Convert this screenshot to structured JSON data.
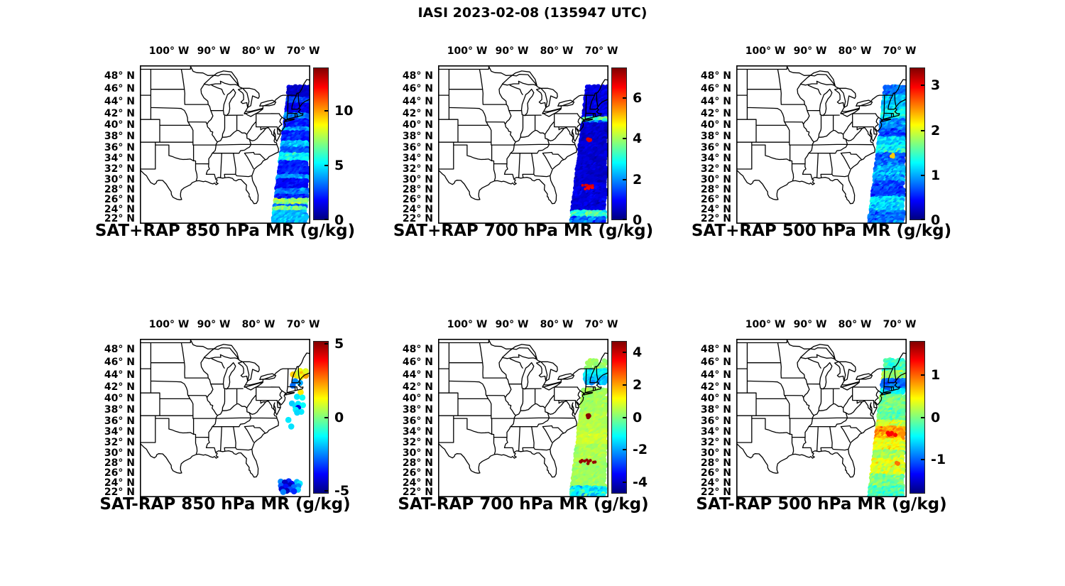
{
  "figure_title": "IASI 2023-02-08 (135947 UTC)",
  "colors": {
    "background": "#ffffff",
    "map_outline": "#000000",
    "jet_colormap": [
      "#000080",
      "#0000ff",
      "#00ffff",
      "#ffff00",
      "#ff0000",
      "#800000"
    ]
  },
  "axes": {
    "lon_tick_labels": [
      "100° W",
      "90° W",
      "80° W",
      "70° W"
    ],
    "lon_tick_values": [
      -100,
      -90,
      -80,
      -70
    ],
    "lat_tick_labels": [
      "48° N",
      "46° N",
      "44° N",
      "42° N",
      "40° N",
      "38° N",
      "36° N",
      "34° N",
      "32° N",
      "30° N",
      "28° N",
      "26° N",
      "24° N",
      "22° N"
    ],
    "lat_tick_values": [
      48,
      46,
      44,
      42,
      40,
      38,
      36,
      34,
      32,
      30,
      28,
      26,
      24,
      22
    ]
  },
  "chart_data": [
    {
      "type": "scatter",
      "title": "SAT+RAP 850 hPa MR (g/kg)",
      "units": "g/kg",
      "projection": "mercator",
      "lon_range": [
        -106.5,
        -68.4
      ],
      "lat_range": [
        20.9,
        49.6
      ],
      "colorbar": {
        "min": 0,
        "max": 14,
        "tick_values": [
          0,
          5,
          10
        ]
      },
      "swath": {
        "mode": "stripes",
        "stripes": [
          [
            46.5,
            44.5,
            1.0,
            0.6,
            0.03
          ],
          [
            44.5,
            43.5,
            2.6,
            1.0,
            0
          ],
          [
            43.5,
            41.8,
            1.5,
            0.7,
            0
          ],
          [
            41.8,
            40.8,
            3.4,
            1.2,
            0
          ],
          [
            40.8,
            39.5,
            2.0,
            0.9,
            0
          ],
          [
            39.5,
            38.8,
            4.0,
            1.2,
            0
          ],
          [
            38.8,
            37.2,
            2.2,
            0.9,
            0
          ],
          [
            37.2,
            36.0,
            4.3,
            1.2,
            0
          ],
          [
            36.0,
            34.8,
            3.0,
            1.0,
            0
          ],
          [
            34.8,
            33.2,
            5.3,
            1.2,
            0
          ],
          [
            33.2,
            30.8,
            2.2,
            0.9,
            0
          ],
          [
            30.8,
            30.0,
            4.0,
            1.0,
            0
          ],
          [
            30.0,
            28.0,
            1.8,
            0.8,
            0
          ],
          [
            28.0,
            26.8,
            3.4,
            1.2,
            0
          ],
          [
            26.8,
            25.8,
            2.2,
            1.0,
            0
          ],
          [
            25.8,
            24.8,
            7.3,
            1.3,
            0
          ],
          [
            24.8,
            24.2,
            3.2,
            1.1,
            0
          ],
          [
            24.2,
            23.4,
            6.8,
            1.4,
            0
          ],
          [
            23.4,
            21.0,
            4.4,
            1.1,
            0.02
          ]
        ],
        "spots": []
      }
    },
    {
      "type": "scatter",
      "title": "SAT+RAP 700 hPa MR (g/kg)",
      "units": "g/kg",
      "projection": "mercator",
      "lon_range": [
        -106.5,
        -68.4
      ],
      "lat_range": [
        20.9,
        49.6
      ],
      "colorbar": {
        "min": 0,
        "max": 7.5,
        "tick_values": [
          0,
          2,
          4,
          6
        ]
      },
      "swath": {
        "mode": "stripes",
        "stripes": [
          [
            46.5,
            41.4,
            0.7,
            0.4,
            0.03
          ],
          [
            41.4,
            40.5,
            3.4,
            0.9,
            0
          ],
          [
            40.5,
            40.1,
            1.8,
            0.7,
            0
          ],
          [
            40.1,
            29.2,
            0.6,
            0.35,
            0.02
          ],
          [
            29.2,
            23.4,
            0.7,
            0.4,
            0.02
          ],
          [
            23.4,
            22.3,
            3.2,
            0.9,
            0
          ],
          [
            22.3,
            21.0,
            1.6,
            1.0,
            0.1
          ]
        ],
        "spots": [
          {
            "lat": 37.35,
            "fx": 0.3,
            "value": 6.8,
            "n": 5,
            "sx": 0.06,
            "r": 2.8
          },
          {
            "lat": 28.6,
            "fx": 0.35,
            "value": 6.8,
            "n": 8,
            "sx": 0.25,
            "r": 2.0
          },
          {
            "lat": 28.15,
            "fx": 0.5,
            "value": 6.6,
            "n": 6,
            "sx": 0.2,
            "r": 2.0
          }
        ]
      }
    },
    {
      "type": "scatter",
      "title": "SAT+RAP 500 hPa MR (g/kg)",
      "units": "g/kg",
      "projection": "mercator",
      "lon_range": [
        -106.5,
        -68.4
      ],
      "lat_range": [
        20.9,
        49.6
      ],
      "colorbar": {
        "min": 0,
        "max": 3.4,
        "tick_values": [
          0,
          1,
          2,
          3
        ]
      },
      "swath": {
        "mode": "stripes",
        "stripes": [
          [
            46.4,
            44.8,
            0.8,
            0.3,
            0.05
          ],
          [
            44.8,
            43.0,
            1.1,
            0.35,
            0.02
          ],
          [
            43.0,
            41.0,
            1.25,
            0.4,
            0.02
          ],
          [
            41.0,
            39.2,
            0.9,
            0.35,
            0.02
          ],
          [
            39.2,
            37.8,
            0.65,
            0.3,
            0.02
          ],
          [
            37.8,
            36.2,
            1.1,
            0.4,
            0.02
          ],
          [
            36.2,
            35.0,
            1.3,
            0.45,
            0.02
          ],
          [
            35.0,
            32.8,
            0.8,
            0.35,
            0.02
          ],
          [
            32.8,
            29.5,
            1.0,
            0.4,
            0.02
          ],
          [
            29.5,
            26.5,
            0.65,
            0.3,
            0.02
          ],
          [
            26.5,
            23.5,
            1.15,
            0.4,
            0.02
          ],
          [
            23.5,
            21.0,
            0.8,
            0.35,
            0.05
          ]
        ],
        "spots": [
          {
            "lat": 34.55,
            "fx": 0.55,
            "value": 2.3,
            "n": 4,
            "sx": 0.06,
            "r": 2.5
          }
        ]
      }
    },
    {
      "type": "scatter",
      "title": "SAT-RAP 850 hPa MR (g/kg)",
      "units": "g/kg",
      "projection": "mercator",
      "lon_range": [
        -106.5,
        -68.4
      ],
      "lat_range": [
        20.9,
        49.6
      ],
      "colorbar": {
        "min": -5.2,
        "max": 5.2,
        "tick_values": [
          5,
          0,
          -5
        ]
      },
      "swath": {
        "mode": "points",
        "points": [
          [
            44.6,
            0.55,
            1.2
          ],
          [
            44.4,
            0.75,
            1.5
          ],
          [
            44.2,
            0.6,
            2.0
          ],
          [
            44.0,
            0.8,
            1.0
          ],
          [
            43.9,
            0.45,
            1.5
          ],
          [
            44.3,
            0.4,
            0.8
          ],
          [
            44.1,
            0.25,
            1.8
          ],
          [
            43.7,
            0.6,
            1.2
          ],
          [
            43.8,
            0.85,
            2.2
          ],
          [
            44.5,
            0.85,
            1.0
          ],
          [
            42.9,
            0.35,
            -2.5
          ],
          [
            42.6,
            0.6,
            -2.2
          ],
          [
            42.3,
            0.3,
            -2.8
          ],
          [
            41.0,
            0.65,
            1.5
          ],
          [
            40.4,
            0.5,
            -1.5
          ],
          [
            40.2,
            0.75,
            -1.2
          ],
          [
            39.3,
            0.3,
            -1.8
          ],
          [
            39.0,
            0.55,
            -1.5
          ],
          [
            38.8,
            0.75,
            -1.3
          ],
          [
            38.6,
            0.45,
            -1.6
          ],
          [
            38.3,
            0.6,
            -4.2
          ],
          [
            38.0,
            0.5,
            -1.4
          ],
          [
            37.8,
            0.7,
            -1.5
          ],
          [
            37.5,
            0.55,
            -1.7
          ],
          [
            36.3,
            0.25,
            -1.5
          ],
          [
            35.0,
            0.35,
            -1.6
          ],
          [
            24.3,
            0.2,
            -2.5
          ],
          [
            24.2,
            0.45,
            -3.5
          ],
          [
            24.1,
            0.7,
            -2.0
          ],
          [
            23.9,
            0.3,
            -4.5
          ],
          [
            23.8,
            0.55,
            -4.0
          ],
          [
            23.7,
            0.8,
            -1.5
          ],
          [
            23.5,
            0.2,
            -3.0
          ],
          [
            23.4,
            0.5,
            -4.6
          ],
          [
            23.3,
            0.75,
            -2.5
          ],
          [
            23.1,
            0.35,
            -3.8
          ],
          [
            23.0,
            0.6,
            -2.8
          ],
          [
            22.8,
            0.25,
            -4.4
          ],
          [
            22.7,
            0.5,
            -3.2
          ],
          [
            22.6,
            0.75,
            -1.8
          ],
          [
            22.4,
            0.4,
            -4.6
          ],
          [
            22.2,
            0.6,
            -3.5
          ],
          [
            22.0,
            0.3,
            -2.6
          ]
        ],
        "spots": []
      }
    },
    {
      "type": "scatter",
      "title": "SAT-RAP 700 hPa MR (g/kg)",
      "units": "g/kg",
      "projection": "mercator",
      "lon_range": [
        -106.5,
        -68.4
      ],
      "lat_range": [
        20.9,
        49.6
      ],
      "colorbar": {
        "min": -4.7,
        "max": 4.7,
        "tick_values": [
          4,
          2,
          0,
          -2,
          -4
        ]
      },
      "swath": {
        "mode": "stripes",
        "stripes": [
          [
            46.5,
            44.8,
            0.3,
            0.4,
            0.5
          ],
          [
            44.8,
            43.6,
            -1.3,
            0.6,
            0.15
          ],
          [
            43.6,
            42.6,
            -1.9,
            0.7,
            0.2
          ],
          [
            41.6,
            37.5,
            0.3,
            0.35,
            0.12
          ],
          [
            37.5,
            33.5,
            0.5,
            0.35,
            0.08
          ],
          [
            33.5,
            31.5,
            0.75,
            0.4,
            0.08
          ],
          [
            31.5,
            28.0,
            0.4,
            0.4,
            0.08
          ],
          [
            28.0,
            23.2,
            0.3,
            0.35,
            0.1
          ],
          [
            23.2,
            21.2,
            -1.2,
            1.3,
            0.15
          ]
        ],
        "spots": [
          {
            "lat": 36.9,
            "fx": 0.28,
            "value": 4.6,
            "n": 5,
            "sx": 0.05,
            "r": 2.8
          },
          {
            "lat": 28.45,
            "fx": 0.3,
            "value": 4.5,
            "n": 7,
            "sx": 0.2,
            "r": 2.2
          },
          {
            "lat": 28.1,
            "fx": 0.55,
            "value": 4.5,
            "n": 5,
            "sx": 0.15,
            "r": 2.2
          }
        ]
      }
    },
    {
      "type": "scatter",
      "title": "SAT-RAP 500 hPa MR (g/kg)",
      "units": "g/kg",
      "projection": "mercator",
      "lon_range": [
        -106.5,
        -68.4
      ],
      "lat_range": [
        20.9,
        49.6
      ],
      "colorbar": {
        "min": -1.8,
        "max": 1.8,
        "tick_values": [
          1,
          0,
          -1
        ]
      },
      "swath": {
        "mode": "stripes",
        "stripes": [
          [
            46.4,
            44.6,
            -0.25,
            0.3,
            0.15
          ],
          [
            44.6,
            43.2,
            0.05,
            0.25,
            0.08
          ],
          [
            43.2,
            41.6,
            -1.0,
            0.3,
            0.08
          ],
          [
            41.6,
            40.6,
            -0.5,
            0.3,
            0.25
          ],
          [
            40.6,
            38.2,
            0.0,
            0.25,
            0.08
          ],
          [
            38.2,
            36.0,
            -0.15,
            0.3,
            0.06
          ],
          [
            36.0,
            34.8,
            0.3,
            0.3,
            0.06
          ],
          [
            34.8,
            32.6,
            0.8,
            0.35,
            0.06
          ],
          [
            32.6,
            30.4,
            0.4,
            0.3,
            0.06
          ],
          [
            30.4,
            28.6,
            0.1,
            0.3,
            0.06
          ],
          [
            28.6,
            25.4,
            0.35,
            0.3,
            0.06
          ],
          [
            25.4,
            23.2,
            0.0,
            0.3,
            0.06
          ],
          [
            23.2,
            21.0,
            -0.2,
            0.3,
            0.1
          ]
        ],
        "spots": [
          {
            "lat": 33.6,
            "fx": 0.55,
            "value": 1.35,
            "n": 6,
            "sx": 0.15,
            "r": 3.0
          },
          {
            "lat": 27.9,
            "fx": 0.75,
            "value": 0.95,
            "n": 4,
            "sx": 0.08,
            "r": 2.8
          }
        ]
      }
    }
  ]
}
